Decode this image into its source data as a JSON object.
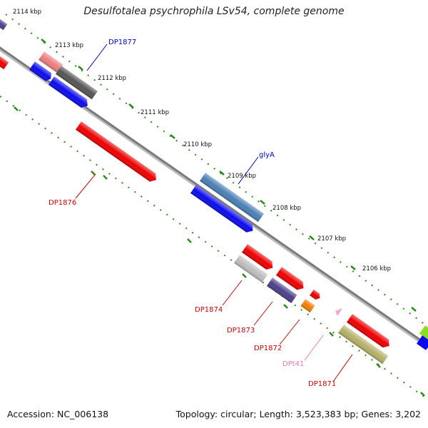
{
  "title": "Desulfotalea psychrophila LSv54, complete genome",
  "footer": {
    "accession": "Accession: NC_006138",
    "summary": "Topology: circular; Length: 3,523,383 bp; Genes: 3,202"
  },
  "ticks": [
    "2114 kbp",
    "2113 kbp",
    "2112 kbp",
    "2111 kbp",
    "2110 kbp",
    "2109 kbp",
    "2108 kbp",
    "2107 kbp",
    "2106 kbp"
  ],
  "gene_labels": [
    "DP1877",
    "glyA",
    "DP1876",
    "DP1874",
    "DP1873",
    "DP1872",
    "DPt41",
    "DP1871"
  ],
  "colors": {
    "backbone": "#7a7a7a",
    "tick_dots": "#2a8a1a",
    "label_red": "#d40000",
    "label_blue": "#0000cc",
    "label_pink": "#e87ab8"
  }
}
